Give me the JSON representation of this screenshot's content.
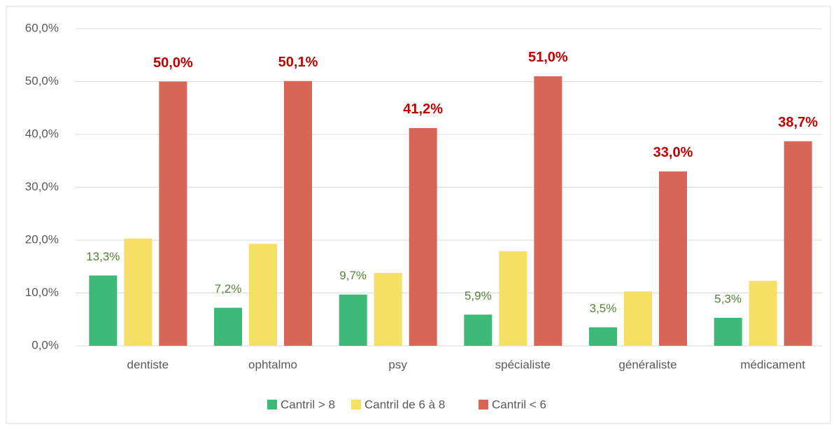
{
  "chart_data": {
    "type": "bar",
    "categories": [
      "dentiste",
      "ophtalmo",
      "psy",
      "spécialiste",
      "généraliste",
      "médicament"
    ],
    "series": [
      {
        "name": "Cantril > 8",
        "color": "#3dba78",
        "values": [
          13.3,
          7.2,
          9.7,
          5.9,
          3.5,
          5.3
        ],
        "value_labels": [
          "13,3%",
          "7,2%",
          "9,7%",
          "5,9%",
          "3,5%",
          "5,3%"
        ],
        "label_color": "#548235"
      },
      {
        "name": "Cantril de 6 à 8",
        "color": "#f5e064",
        "values": [
          20.3,
          19.3,
          13.8,
          17.9,
          10.3,
          12.3
        ]
      },
      {
        "name": "Cantril < 6",
        "color": "#d76657",
        "values": [
          50.0,
          50.1,
          41.2,
          51.0,
          33.0,
          38.7
        ],
        "value_labels": [
          "50,0%",
          "50,1%",
          "41,2%",
          "51,0%",
          "33,0%",
          "38,7%"
        ],
        "label_color": "#c00000"
      }
    ],
    "ylim": [
      0,
      60
    ],
    "yticks": [
      {
        "value": 0,
        "label": "0,0%"
      },
      {
        "value": 10,
        "label": "10,0%"
      },
      {
        "value": 20,
        "label": "20,0%"
      },
      {
        "value": 30,
        "label": "30,0%"
      },
      {
        "value": 40,
        "label": "40,0%"
      },
      {
        "value": 50,
        "label": "50,0%"
      },
      {
        "value": 60,
        "label": "60,0%"
      }
    ],
    "grid": true,
    "legend": "bottom"
  }
}
